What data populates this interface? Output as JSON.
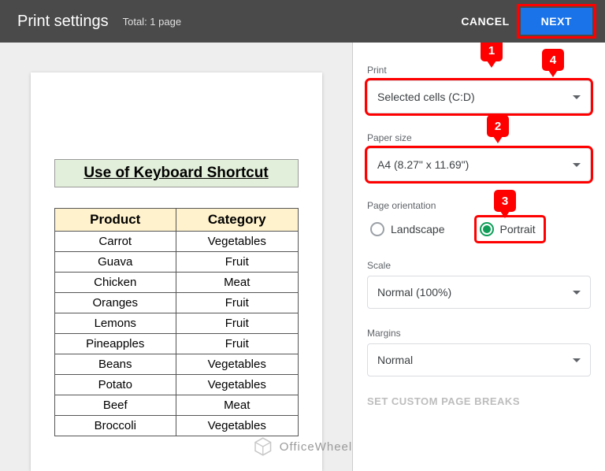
{
  "header": {
    "title": "Print settings",
    "total": "Total: 1 page",
    "cancel": "CANCEL",
    "next": "NEXT"
  },
  "callouts": [
    "1",
    "2",
    "3",
    "4"
  ],
  "preview": {
    "doc_title": "Use of Keyboard Shortcut",
    "table": {
      "columns": [
        "Product",
        "Category"
      ],
      "rows": [
        [
          "Carrot",
          "Vegetables"
        ],
        [
          "Guava",
          "Fruit"
        ],
        [
          "Chicken",
          "Meat"
        ],
        [
          "Oranges",
          "Fruit"
        ],
        [
          "Lemons",
          "Fruit"
        ],
        [
          "Pineapples",
          "Fruit"
        ],
        [
          "Beans",
          "Vegetables"
        ],
        [
          "Potato",
          "Vegetables"
        ],
        [
          "Beef",
          "Meat"
        ],
        [
          "Broccoli",
          "Vegetables"
        ]
      ],
      "header_bg": "#fff2cc",
      "title_bg": "#e2efda",
      "border_color": "#555555"
    }
  },
  "settings": {
    "print": {
      "label": "Print",
      "value": "Selected cells (C:D)",
      "highlight_color": "#ff0000"
    },
    "paper": {
      "label": "Paper size",
      "value": "A4 (8.27\" x 11.69\")",
      "highlight_color": "#ff0000"
    },
    "orientation": {
      "label": "Page orientation",
      "options": {
        "landscape": "Landscape",
        "portrait": "Portrait"
      },
      "selected": "portrait",
      "selected_color": "#0f9d58",
      "highlight_color": "#ff0000"
    },
    "scale": {
      "label": "Scale",
      "value": "Normal (100%)"
    },
    "margins": {
      "label": "Margins",
      "value": "Normal"
    },
    "custom_breaks": "SET CUSTOM PAGE BREAKS"
  },
  "watermark_text": "OfficeWheel",
  "colors": {
    "header_bg": "#4a4a4a",
    "next_bg": "#1a73e8",
    "callout_bg": "#ff0000",
    "preview_bg": "#eeeeee"
  }
}
